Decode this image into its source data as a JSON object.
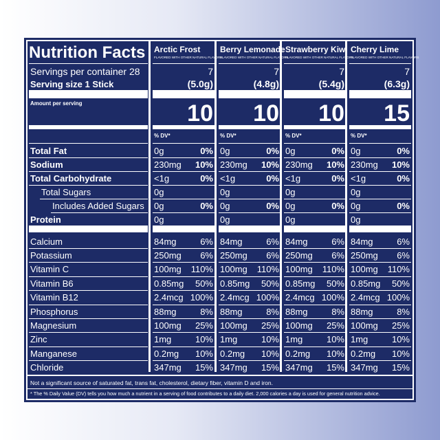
{
  "header": {
    "title": "Nutrition Facts",
    "servings_label": "Servings per container 28",
    "serving_size_label": "Serving size 1 Stick",
    "amount_label": "Amount per serving"
  },
  "nutrients": [
    "Total Fat",
    "Sodium",
    "Total Carbohydrate",
    "Total Sugars",
    "Includes Added Sugars",
    "Protein",
    "Calcium",
    "Potassium",
    "Vitamin C",
    "Vitamin B6",
    "Vitamin B12",
    "Phosphorus",
    "Magnesium",
    "Zinc",
    "Manganese",
    "Chloride"
  ],
  "flavors": [
    {
      "name": "Arctic Frost",
      "note": "FLAVORED WITH OTHER NATURAL FLAVORS",
      "servings": 7,
      "serving_size": "(5.0g)",
      "calories": 10,
      "dv_label": "% DV*",
      "amounts": [
        "0g",
        "230mg",
        "<1g",
        "0g",
        "0g",
        "0g",
        "84mg",
        "250mg",
        "100mg",
        "0.85mg",
        "2.4mcg",
        "88mg",
        "100mg",
        "1mg",
        "0.2mg",
        "347mg"
      ],
      "dvs": [
        "0%",
        "10%",
        "0%",
        null,
        "0%",
        null,
        "6%",
        "6%",
        "110%",
        "50%",
        "100%",
        "8%",
        "25%",
        "10%",
        "10%",
        "15%"
      ]
    },
    {
      "name": "Berry Lemonade",
      "note": "FLAVORED WITH OTHER NATURAL FLAVORS",
      "servings": 7,
      "serving_size": "(4.8g)",
      "calories": 10,
      "dv_label": "% DV*",
      "amounts": [
        "0g",
        "230mg",
        "<1g",
        "0g",
        "0g",
        "0g",
        "84mg",
        "250mg",
        "100mg",
        "0.85mg",
        "2.4mcg",
        "88mg",
        "100mg",
        "1mg",
        "0.2mg",
        "347mg"
      ],
      "dvs": [
        "0%",
        "10%",
        "0%",
        null,
        "0%",
        null,
        "6%",
        "6%",
        "110%",
        "50%",
        "100%",
        "8%",
        "25%",
        "10%",
        "10%",
        "15%"
      ]
    },
    {
      "name": "Strawberry Kiwi",
      "note": "FLAVORED WITH OTHER NATURAL FLAVORS",
      "servings": 7,
      "serving_size": "(5.4g)",
      "calories": 10,
      "dv_label": "% DV*",
      "amounts": [
        "0g",
        "230mg",
        "<1g",
        "0g",
        "0g",
        "0g",
        "84mg",
        "250mg",
        "100mg",
        "0.85mg",
        "2.4mcg",
        "88mg",
        "100mg",
        "1mg",
        "0.2mg",
        "347mg"
      ],
      "dvs": [
        "0%",
        "10%",
        "0%",
        null,
        "0%",
        null,
        "6%",
        "6%",
        "110%",
        "50%",
        "100%",
        "8%",
        "25%",
        "10%",
        "10%",
        "15%"
      ]
    },
    {
      "name": "Cherry Lime",
      "note": "FLAVORED WITH OTHER NATURAL FLAVORS",
      "servings": 7,
      "serving_size": "(6.3g)",
      "calories": 15,
      "dv_label": "% DV*",
      "amounts": [
        "0g",
        "230mg",
        "<1g",
        "0g",
        "0g",
        "0g",
        "84mg",
        "250mg",
        "100mg",
        "0.85mg",
        "2.4mcg",
        "88mg",
        "100mg",
        "1mg",
        "0.2mg",
        "347mg"
      ],
      "dvs": [
        "0%",
        "10%",
        "0%",
        null,
        "0%",
        null,
        "6%",
        "6%",
        "110%",
        "50%",
        "100%",
        "8%",
        "25%",
        "10%",
        "10%",
        "15%"
      ]
    }
  ],
  "footnotes": [
    "Not a significant source of saturated fat, trans fat, cholesterol, dietary fiber, vitamin D and iron.",
    "* The % Daily Value (DV) tells you how much a nutrient in a serving of food contributes to a daily diet. 2,000 calories a day is used for general nutrition advice."
  ]
}
